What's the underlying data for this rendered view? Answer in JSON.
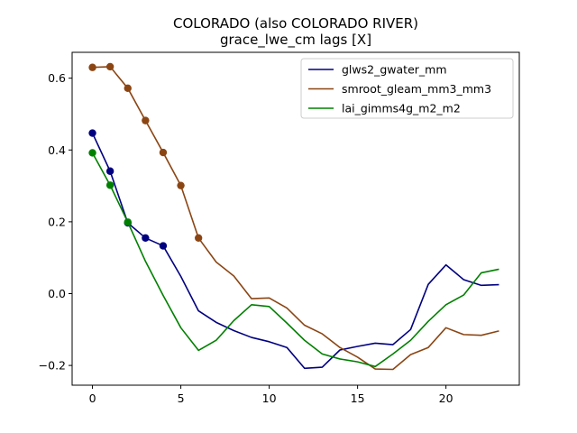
{
  "chart_data": {
    "type": "line",
    "title": "COLORADO (also COLORADO RIVER)",
    "subtitle": "grace_lwe_cm lags [X]",
    "xlabel": "",
    "ylabel": "",
    "xlim": [
      -1.15,
      24.15
    ],
    "ylim": [
      -0.255,
      0.672
    ],
    "x_ticks": [
      0,
      5,
      10,
      15,
      20
    ],
    "y_ticks": [
      -0.2,
      0.0,
      0.2,
      0.4,
      0.6
    ],
    "y_tick_labels": [
      "−0.2",
      "0.0",
      "0.2",
      "0.4",
      "0.6"
    ],
    "grid": false,
    "legend_position": "top-right",
    "x": [
      0,
      1,
      2,
      3,
      4,
      5,
      6,
      7,
      8,
      9,
      10,
      11,
      12,
      13,
      14,
      15,
      16,
      17,
      18,
      19,
      20,
      21,
      22,
      23
    ],
    "series": [
      {
        "name": "glws2_gwater_mm",
        "color": "#000080",
        "values": [
          0.447,
          0.341,
          0.197,
          0.155,
          0.133,
          0.048,
          -0.048,
          -0.08,
          -0.103,
          -0.122,
          -0.134,
          -0.15,
          -0.208,
          -0.205,
          -0.157,
          -0.147,
          -0.138,
          -0.142,
          -0.1,
          0.026,
          0.08,
          0.039,
          0.023,
          0.025
        ],
        "markers_x": [
          0,
          1,
          2,
          3,
          4
        ]
      },
      {
        "name": "smroot_gleam_mm3_mm3",
        "color": "#8B4513",
        "values": [
          0.63,
          0.632,
          0.572,
          0.482,
          0.393,
          0.301,
          0.155,
          0.088,
          0.049,
          -0.014,
          -0.012,
          -0.04,
          -0.088,
          -0.112,
          -0.15,
          -0.177,
          -0.21,
          -0.211,
          -0.17,
          -0.15,
          -0.095,
          -0.114,
          -0.116,
          -0.104
        ],
        "markers_x": [
          0,
          1,
          2,
          3,
          4,
          5,
          6
        ]
      },
      {
        "name": "lai_gimms4g_m2_m2",
        "color": "#008000",
        "values": [
          0.392,
          0.302,
          0.199,
          0.09,
          -0.005,
          -0.095,
          -0.158,
          -0.13,
          -0.075,
          -0.031,
          -0.036,
          -0.082,
          -0.13,
          -0.168,
          -0.182,
          -0.19,
          -0.203,
          -0.168,
          -0.13,
          -0.077,
          -0.031,
          -0.004,
          0.058,
          0.068
        ],
        "markers_x": [
          0,
          1,
          2
        ]
      }
    ]
  }
}
